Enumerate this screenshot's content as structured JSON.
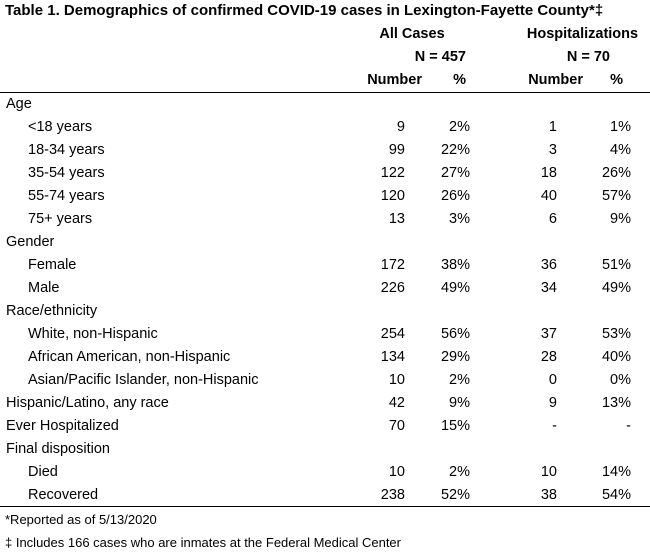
{
  "title": "Table 1. Demographics of confirmed COVID-19 cases in Lexington-Fayette County*‡",
  "headers": {
    "all_cases": "All Cases",
    "all_cases_n": "N = 457",
    "hospitalizations": "Hospitalizations",
    "hospitalizations_n": "N = 70",
    "number": "Number",
    "percent": "%"
  },
  "rows": [
    {
      "label": "Age",
      "indent": false,
      "all_num": "",
      "all_pct": "",
      "hosp_num": "",
      "hosp_pct": ""
    },
    {
      "label": "<18 years",
      "indent": true,
      "all_num": "9",
      "all_pct": "2%",
      "hosp_num": "1",
      "hosp_pct": "1%"
    },
    {
      "label": "18-34 years",
      "indent": true,
      "all_num": "99",
      "all_pct": "22%",
      "hosp_num": "3",
      "hosp_pct": "4%"
    },
    {
      "label": "35-54 years",
      "indent": true,
      "all_num": "122",
      "all_pct": "27%",
      "hosp_num": "18",
      "hosp_pct": "26%"
    },
    {
      "label": "55-74 years",
      "indent": true,
      "all_num": "120",
      "all_pct": "26%",
      "hosp_num": "40",
      "hosp_pct": "57%"
    },
    {
      "label": "75+ years",
      "indent": true,
      "all_num": "13",
      "all_pct": "3%",
      "hosp_num": "6",
      "hosp_pct": "9%"
    },
    {
      "label": "Gender",
      "indent": false,
      "all_num": "",
      "all_pct": "",
      "hosp_num": "",
      "hosp_pct": ""
    },
    {
      "label": "Female",
      "indent": true,
      "all_num": "172",
      "all_pct": "38%",
      "hosp_num": "36",
      "hosp_pct": "51%"
    },
    {
      "label": "Male",
      "indent": true,
      "all_num": "226",
      "all_pct": "49%",
      "hosp_num": "34",
      "hosp_pct": "49%"
    },
    {
      "label": "Race/ethnicity",
      "indent": false,
      "all_num": "",
      "all_pct": "",
      "hosp_num": "",
      "hosp_pct": ""
    },
    {
      "label": "White, non-Hispanic",
      "indent": true,
      "all_num": "254",
      "all_pct": "56%",
      "hosp_num": "37",
      "hosp_pct": "53%"
    },
    {
      "label": "African American, non-Hispanic",
      "indent": true,
      "all_num": "134",
      "all_pct": "29%",
      "hosp_num": "28",
      "hosp_pct": "40%"
    },
    {
      "label": "Asian/Pacific Islander, non-Hispanic",
      "indent": true,
      "all_num": "10",
      "all_pct": "2%",
      "hosp_num": "0",
      "hosp_pct": "0%"
    },
    {
      "label": "Hispanic/Latino, any race",
      "indent": false,
      "all_num": "42",
      "all_pct": "9%",
      "hosp_num": "9",
      "hosp_pct": "13%"
    },
    {
      "label": "Ever Hospitalized",
      "indent": false,
      "all_num": "70",
      "all_pct": "15%",
      "hosp_num": "-",
      "hosp_pct": "-"
    },
    {
      "label": "Final disposition",
      "indent": false,
      "all_num": "",
      "all_pct": "",
      "hosp_num": "",
      "hosp_pct": ""
    },
    {
      "label": "Died",
      "indent": true,
      "all_num": "10",
      "all_pct": "2%",
      "hosp_num": "10",
      "hosp_pct": "14%"
    },
    {
      "label": "Recovered",
      "indent": true,
      "all_num": "238",
      "all_pct": "52%",
      "hosp_num": "38",
      "hosp_pct": "54%"
    }
  ],
  "footnotes": [
    "*Reported as of 5/13/2020",
    "‡ Includes 166 cases who are inmates at the Federal Medical Center"
  ]
}
